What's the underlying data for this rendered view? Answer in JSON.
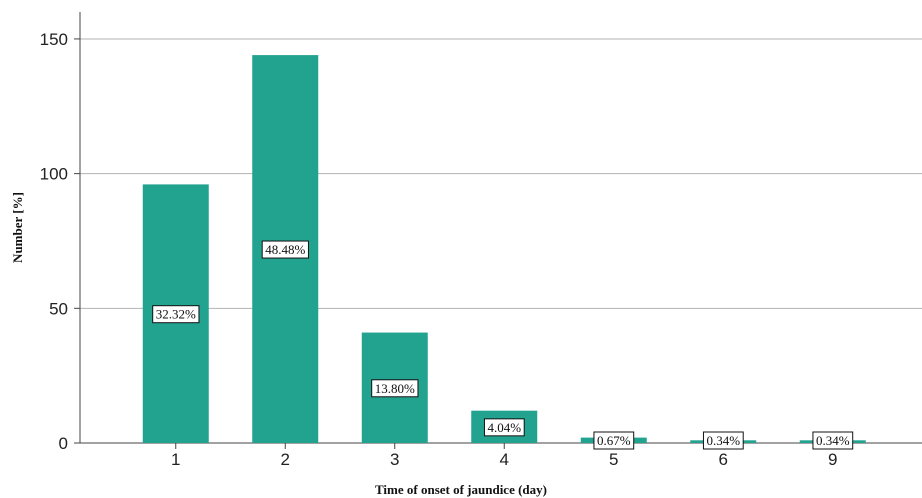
{
  "chart_data": {
    "type": "bar",
    "categories": [
      "1",
      "2",
      "3",
      "4",
      "5",
      "6",
      "9"
    ],
    "values": [
      96,
      144,
      41,
      12,
      2,
      1,
      1
    ],
    "data_labels": [
      "32.32%",
      "48.48%",
      "13.80%",
      "4.04%",
      "0.67%",
      "0.34%",
      "0.34%"
    ],
    "title": "",
    "xlabel": "Time of onset of jaundice (day)",
    "ylabel": "Number [%]",
    "ylim": [
      0,
      160
    ],
    "yticks": [
      "0",
      "50",
      "100",
      "150"
    ],
    "ytick_values": [
      0,
      50,
      100,
      150
    ],
    "grid": "horizontal",
    "legend": "none",
    "bar_color": "#21a38f",
    "grid_color": "#b3b3b3"
  }
}
